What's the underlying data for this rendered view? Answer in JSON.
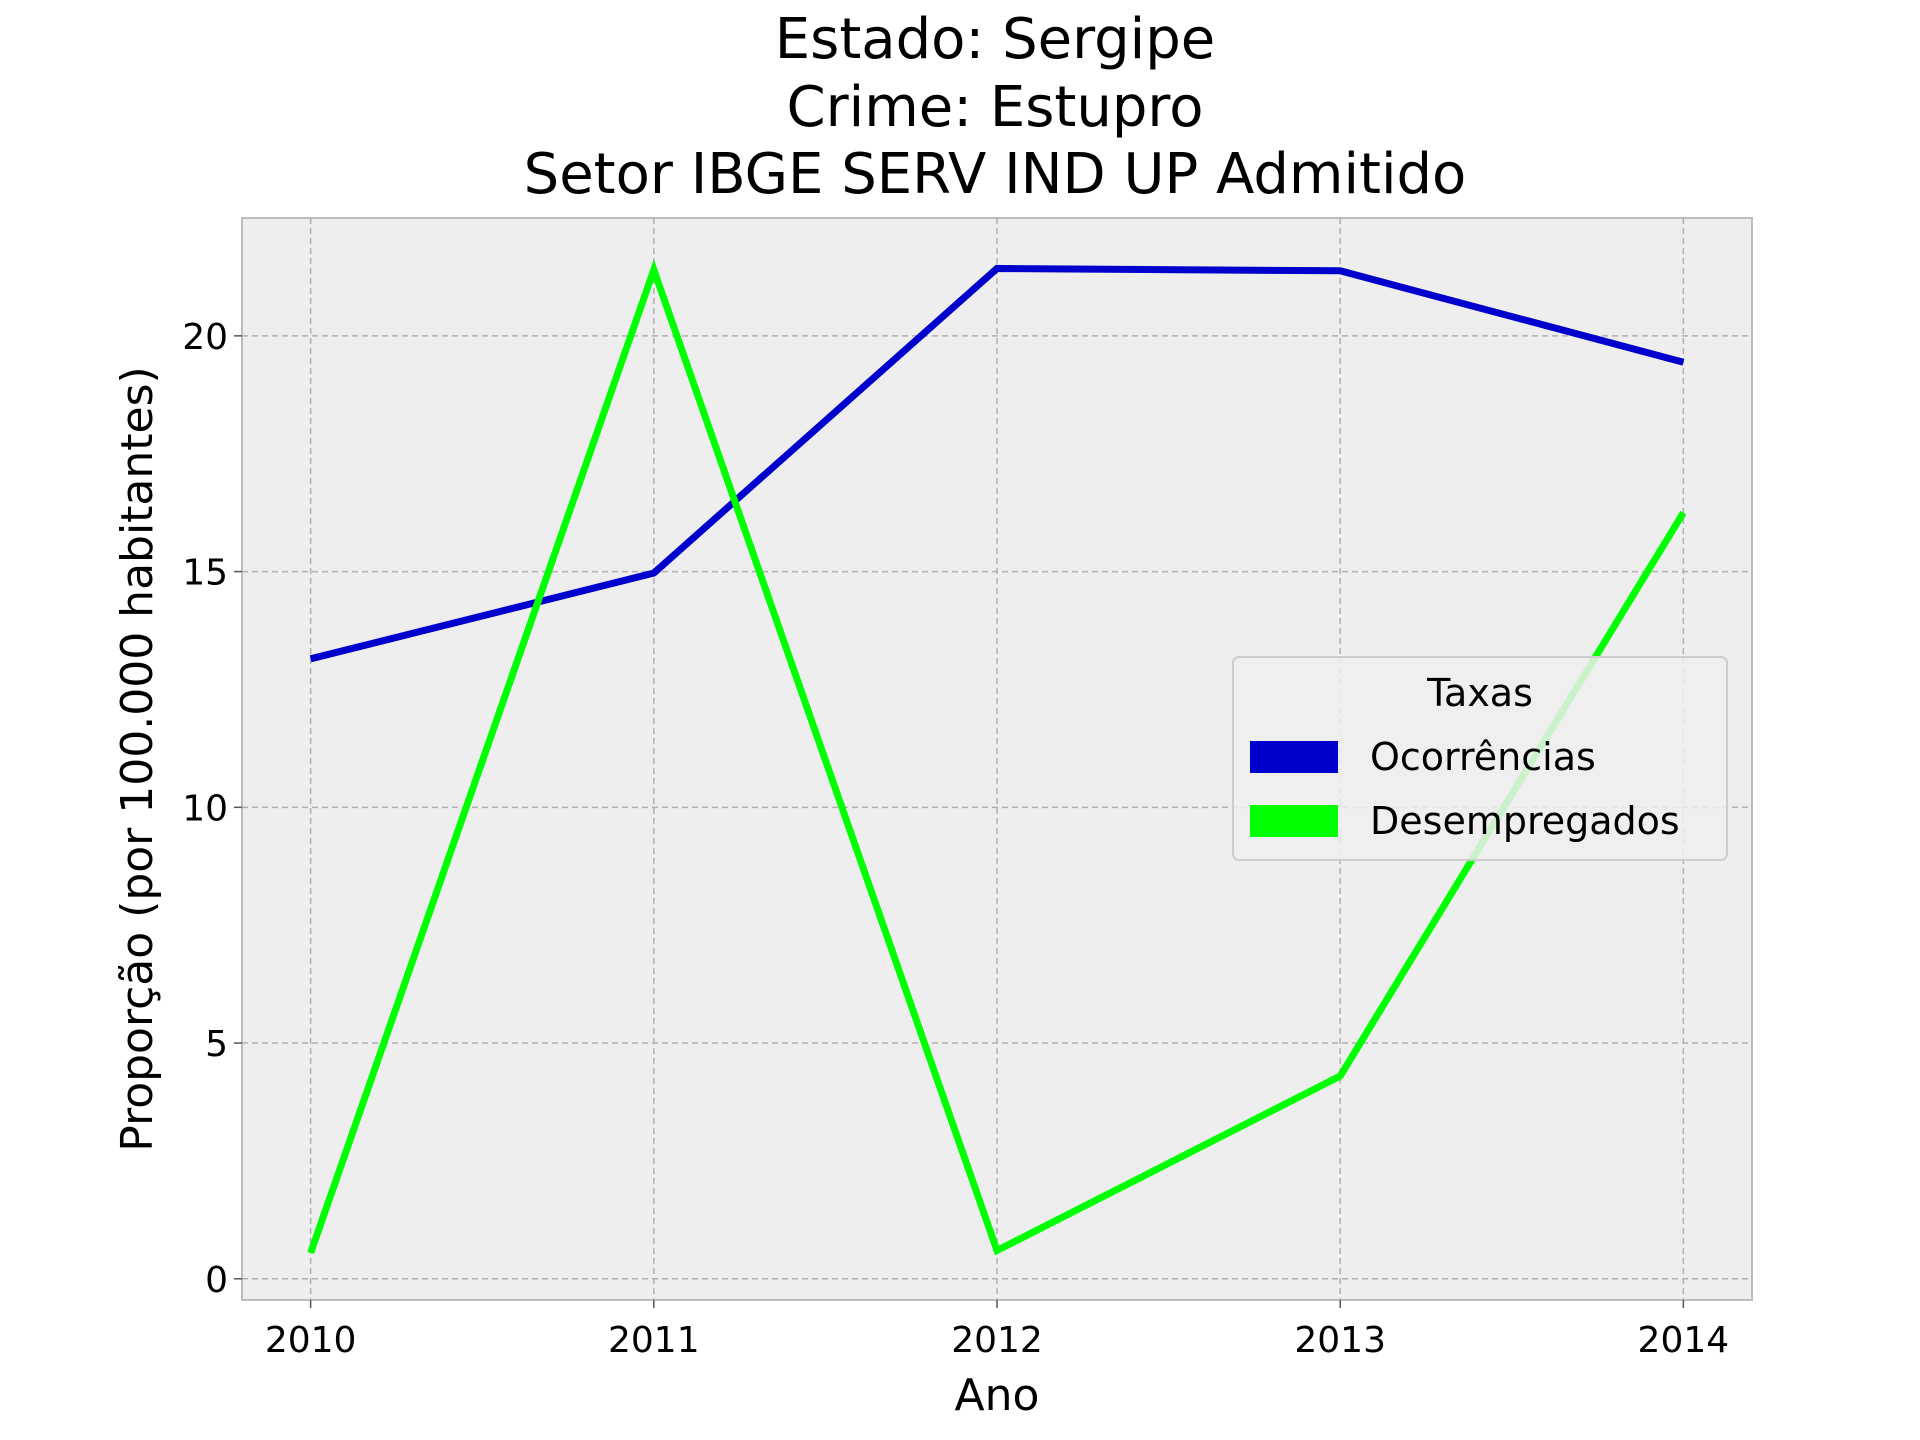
{
  "chart_data": {
    "type": "line",
    "title_lines": [
      "Estado: Sergipe",
      "Crime: Estupro",
      "Setor IBGE  SERV IND UP   Admitido"
    ],
    "xlabel": "Ano",
    "ylabel": "Proporção (por 100.000 habitantes)",
    "x": [
      2010,
      2011,
      2012,
      2013,
      2014
    ],
    "x_tick_labels": [
      "2010",
      "2011",
      "2012",
      "2013",
      "2014"
    ],
    "y_ticks": [
      0,
      5,
      10,
      15,
      20
    ],
    "y_tick_labels": [
      "0",
      "5",
      "10",
      "15",
      "20"
    ],
    "xlim": [
      2009.8,
      2014.2
    ],
    "ylim": [
      -0.45,
      22.5
    ],
    "grid": true,
    "legend": {
      "title": "Taxas",
      "placement": "center-right"
    },
    "series": [
      {
        "name": "Ocorrências",
        "color": "#0000cc",
        "values": [
          13.15,
          14.97,
          21.43,
          21.38,
          19.44
        ]
      },
      {
        "name": "Desempregados",
        "color": "#00ff00",
        "values": [
          0.55,
          21.4,
          0.6,
          4.3,
          16.25
        ]
      }
    ]
  }
}
